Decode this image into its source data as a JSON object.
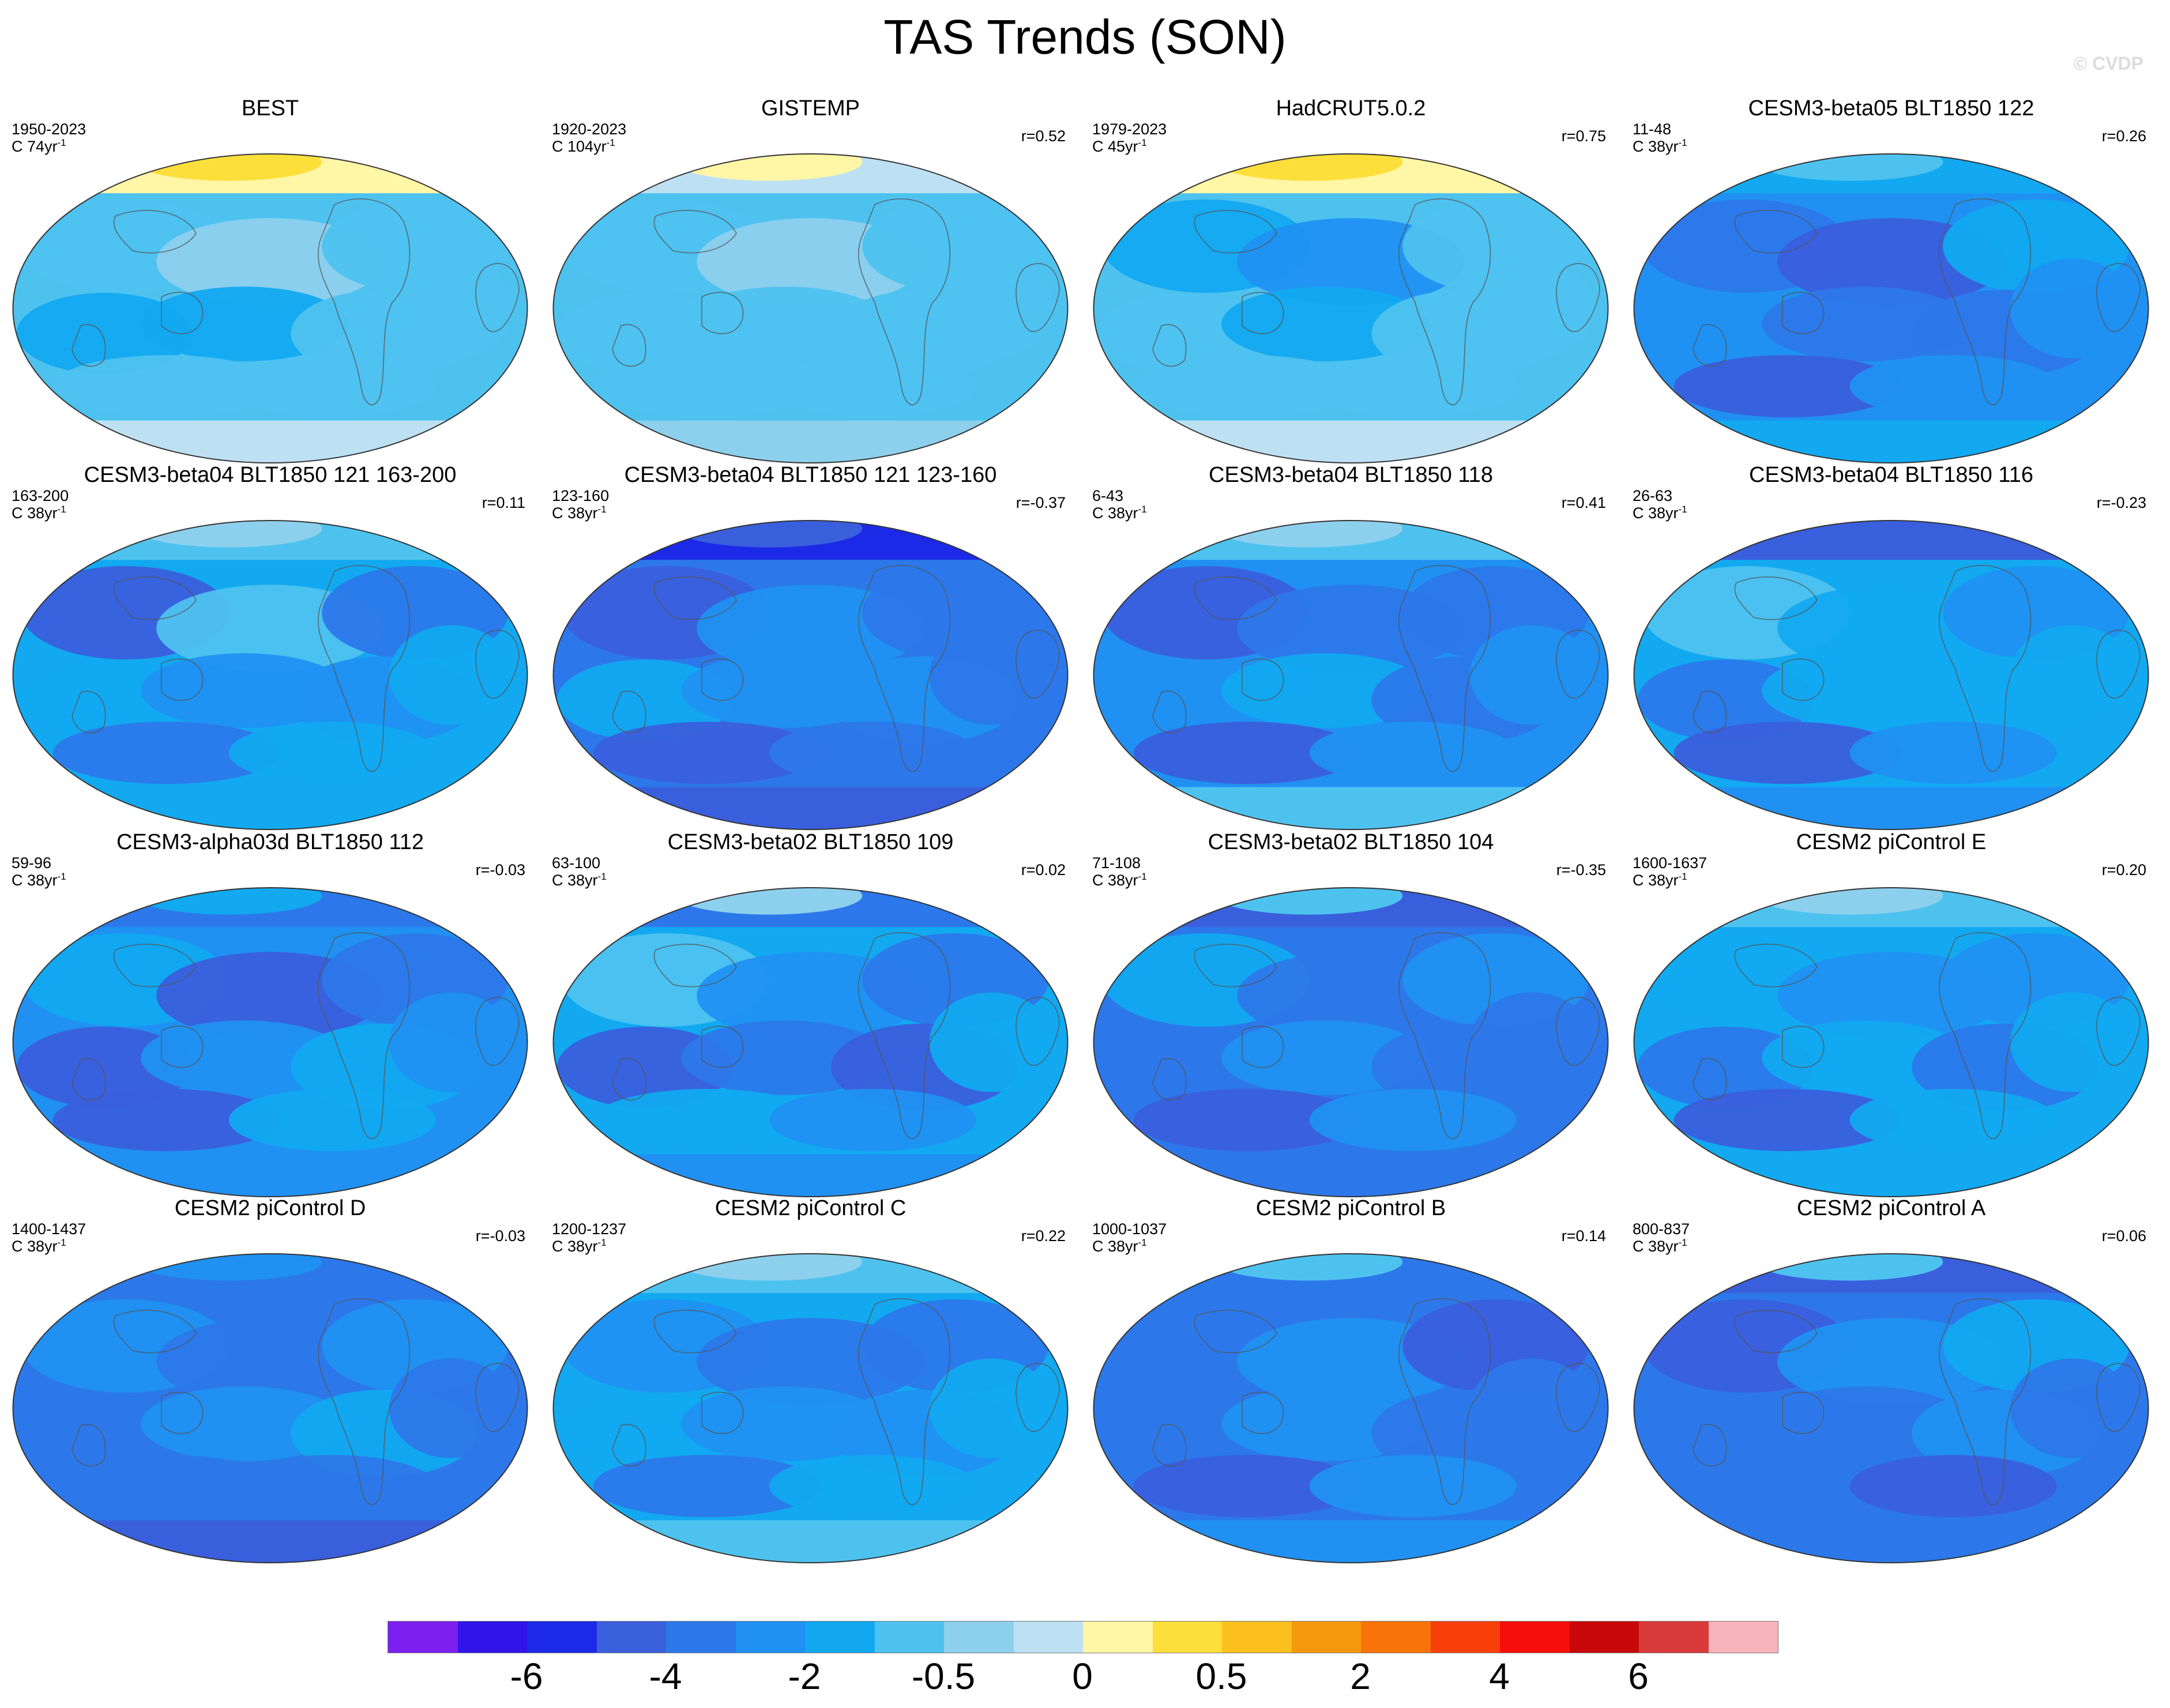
{
  "title": "TAS Trends (SON)",
  "watermark": "© CVDP",
  "rate_unit": "yr",
  "rate_exp": "-1",
  "panels": [
    {
      "title": "BEST",
      "years": "1950-2023",
      "rate": "C 74",
      "corr": "",
      "pattern": [
        7,
        7,
        8,
        7,
        6,
        6,
        7,
        7,
        7,
        10,
        11,
        9
      ]
    },
    {
      "title": "GISTEMP",
      "years": "1920-2023",
      "rate": "C 104",
      "corr": "r=0.52",
      "pattern": [
        7,
        7,
        8,
        7,
        7,
        7,
        7,
        7,
        7,
        9,
        10,
        8
      ]
    },
    {
      "title": "HadCRUT5.0.2",
      "years": "1979-2023",
      "rate": "C 45",
      "corr": "r=0.75",
      "pattern": [
        7,
        6,
        5,
        7,
        7,
        6,
        7,
        7,
        7,
        10,
        11,
        9
      ]
    },
    {
      "title": "CESM3-beta05 BLT1850 122",
      "years": "11-48",
      "rate": "C 38",
      "corr": "r=0.26",
      "pattern": [
        5,
        4,
        3,
        6,
        5,
        4,
        4,
        3,
        5,
        6,
        7,
        6
      ]
    },
    {
      "title": "CESM3-beta04 BLT1850 121 163-200",
      "years": "163-200",
      "rate": "C 38",
      "corr": "r=0.11",
      "pattern": [
        6,
        3,
        7,
        4,
        6,
        5,
        5,
        4,
        6,
        7,
        8,
        6
      ]
    },
    {
      "title": "CESM3-beta04 BLT1850 121 123-160",
      "years": "123-160",
      "rate": "C 38",
      "corr": "r=-0.37",
      "pattern": [
        4,
        3,
        5,
        4,
        6,
        5,
        5,
        3,
        4,
        2,
        3,
        3
      ]
    },
    {
      "title": "CESM3-beta04 BLT1850 118",
      "years": "6-43",
      "rate": "C 38",
      "corr": "r=0.41",
      "pattern": [
        5,
        3,
        4,
        4,
        5,
        6,
        4,
        3,
        5,
        7,
        8,
        7
      ]
    },
    {
      "title": "CESM3-beta04 BLT1850 116",
      "years": "26-63",
      "rate": "C 38",
      "corr": "r=-0.23",
      "pattern": [
        6,
        7,
        6,
        5,
        4,
        6,
        6,
        3,
        5,
        3,
        3,
        5
      ]
    },
    {
      "title": "CESM3-alpha03d BLT1850 112",
      "years": "59-96",
      "rate": "C 38",
      "corr": "r=-0.03",
      "pattern": [
        5,
        6,
        3,
        4,
        3,
        5,
        6,
        3,
        6,
        4,
        6,
        5
      ]
    },
    {
      "title": "CESM3-beta02 BLT1850 109",
      "years": "63-100",
      "rate": "C 38",
      "corr": "r=0.02",
      "pattern": [
        6,
        7,
        5,
        4,
        3,
        4,
        3,
        6,
        5,
        4,
        8,
        5
      ]
    },
    {
      "title": "CESM3-beta02 BLT1850 104",
      "years": "71-108",
      "rate": "C 38",
      "corr": "r=-0.35",
      "pattern": [
        4,
        6,
        4,
        5,
        4,
        5,
        4,
        3,
        5,
        3,
        7,
        4
      ]
    },
    {
      "title": "CESM2 piControl E",
      "years": "1600-1637",
      "rate": "C 38",
      "corr": "r=0.20",
      "pattern": [
        6,
        6,
        5,
        5,
        4,
        6,
        4,
        3,
        6,
        7,
        8,
        6
      ]
    },
    {
      "title": "CESM2 piControl D",
      "years": "1400-1437",
      "rate": "C 38",
      "corr": "r=-0.03",
      "pattern": [
        4,
        5,
        4,
        5,
        4,
        5,
        6,
        4,
        4,
        4,
        5,
        3
      ]
    },
    {
      "title": "CESM2 piControl C",
      "years": "1200-1237",
      "rate": "C 38",
      "corr": "r=0.22",
      "pattern": [
        6,
        5,
        4,
        4,
        6,
        5,
        5,
        4,
        6,
        7,
        8,
        7
      ]
    },
    {
      "title": "CESM2 piControl B",
      "years": "1000-1037",
      "rate": "C 38",
      "corr": "r=0.14",
      "pattern": [
        4,
        4,
        5,
        3,
        4,
        5,
        4,
        3,
        5,
        4,
        7,
        5
      ]
    },
    {
      "title": "CESM2 piControl A",
      "years": "800-837",
      "rate": "C 38",
      "corr": "r=0.06",
      "pattern": [
        4,
        3,
        5,
        6,
        4,
        4,
        5,
        4,
        3,
        3,
        7,
        4
      ]
    }
  ],
  "colorbar": {
    "colors": [
      "#7b20ee",
      "#3014e8",
      "#1c2ae8",
      "#3a5fdd",
      "#2c78ea",
      "#2091f2",
      "#12a9f0",
      "#4ec2ef",
      "#8dd0ed",
      "#bde1f3",
      "#fff6a6",
      "#fddf3c",
      "#fbc01e",
      "#f7990e",
      "#f87308",
      "#f83f0a",
      "#f60f0a",
      "#c80808",
      "#d93b3b",
      "#f8b4bc"
    ],
    "tick_labels": [
      "-6",
      "-4",
      "-2",
      "-0.5",
      "0",
      "0.5",
      "2",
      "4",
      "6"
    ]
  }
}
